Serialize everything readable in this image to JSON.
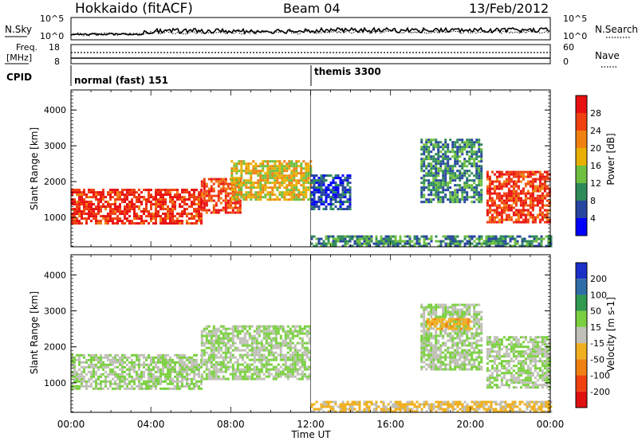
{
  "header": {
    "title": "Hokkaido (fitACF)",
    "beam": "Beam 04",
    "date": "13/Feb/2012"
  },
  "params": {
    "nsky_label": "N.Sky",
    "nsearch_label": "N.Search",
    "freq_label_line1": "Freq.",
    "freq_label_line2": "[MHz]",
    "nave_label": "Nave",
    "cpid_label": "CPID",
    "nsky_ticks": [
      "10^5",
      "10^0"
    ],
    "nsearch_ticks": [
      "10^5",
      "10^0"
    ],
    "freq_ticks": [
      "18",
      "8"
    ],
    "nave_ticks": [
      "60",
      "0"
    ],
    "cpid_segments": [
      {
        "label": "normal (fast) 151",
        "start_hour": 0,
        "end_hour": 12
      },
      {
        "label": "themis 3300",
        "start_hour": 12,
        "end_hour": 24
      }
    ]
  },
  "colors": {
    "power": [
      "#0000ff",
      "#2846a0",
      "#2f8a5a",
      "#6fbf40",
      "#e8b000",
      "#f08010",
      "#f04010",
      "#e81010"
    ],
    "velocity": [
      "#1a2fc8",
      "#2f6ea8",
      "#2f9a50",
      "#7ad040",
      "#c0c0b8",
      "#f0b020",
      "#f08010",
      "#f04010",
      "#e01010"
    ],
    "ground_scatter": "#c0c0b8"
  },
  "chart_data": [
    {
      "type": "heatmap",
      "title": "",
      "xlabel": "Time UT",
      "ylabel": "Slant Range [km]",
      "xlim": [
        0,
        24
      ],
      "ylim": [
        180,
        4560
      ],
      "x_ticks": [
        "00:00",
        "04:00",
        "08:00",
        "12:00",
        "16:00",
        "20:00",
        "00:00"
      ],
      "y_ticks": [
        "1000",
        "2000",
        "3000",
        "4000"
      ],
      "colorbar_label": "Power [dB]",
      "colorbar_ticks": [
        "4",
        "8",
        "12",
        "16",
        "20",
        "24",
        "28"
      ],
      "colorbar_range": [
        0,
        32
      ],
      "regions": [
        {
          "t0": 0,
          "t1": 6.5,
          "r0": 850,
          "r1": 1800,
          "value": 28
        },
        {
          "t0": 6.5,
          "t1": 8.5,
          "r0": 1100,
          "r1": 2100,
          "value": 26
        },
        {
          "t0": 8.0,
          "t1": 12.0,
          "r0": 1500,
          "r1": 2600,
          "value": 18
        },
        {
          "t0": 12.0,
          "t1": 14.0,
          "r0": 1200,
          "r1": 2200,
          "value": 6
        },
        {
          "t0": 17.5,
          "t1": 20.5,
          "r0": 1400,
          "r1": 3200,
          "value": 10
        },
        {
          "t0": 20.8,
          "t1": 24.0,
          "r0": 850,
          "r1": 2300,
          "value": 27
        },
        {
          "t0": 12.0,
          "t1": 24.0,
          "r0": 180,
          "r1": 500,
          "value": 10
        }
      ]
    },
    {
      "type": "heatmap",
      "title": "",
      "xlabel": "Time UT",
      "ylabel": "Slant Range [km]",
      "xlim": [
        0,
        24
      ],
      "ylim": [
        180,
        4560
      ],
      "x_ticks": [
        "00:00",
        "04:00",
        "08:00",
        "12:00",
        "16:00",
        "20:00",
        "00:00"
      ],
      "y_ticks": [
        "1000",
        "2000",
        "3000",
        "4000"
      ],
      "colorbar_label": "Velocity [m s-1]",
      "colorbar_ticks": [
        "200",
        "100",
        "50",
        "15",
        "-15",
        "-50",
        "-100",
        "-200"
      ],
      "regions": [
        {
          "t0": 0,
          "t1": 6.5,
          "r0": 850,
          "r1": 1800,
          "value": 0
        },
        {
          "t0": 6.5,
          "t1": 12.0,
          "r0": 1100,
          "r1": 2600,
          "value": 0
        },
        {
          "t0": 17.5,
          "t1": 20.5,
          "r0": 1400,
          "r1": 3200,
          "value": 0
        },
        {
          "t0": 17.8,
          "t1": 20.0,
          "r0": 2500,
          "r1": 2800,
          "value": -60
        },
        {
          "t0": 20.8,
          "t1": 24.0,
          "r0": 850,
          "r1": 2300,
          "value": 0
        },
        {
          "t0": 12.0,
          "t1": 24.0,
          "r0": 180,
          "r1": 500,
          "value": -40
        }
      ]
    }
  ]
}
